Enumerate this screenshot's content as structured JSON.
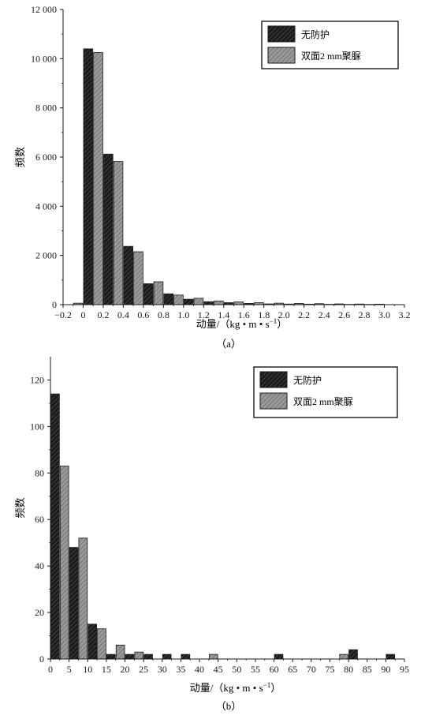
{
  "chart_data": [
    {
      "type": "bar",
      "panel_label": "（a）",
      "xlabel": "动量/（kg • m • s",
      "xlabel_sup": "−1",
      "xlabel_close": "）",
      "ylabel": "频数",
      "xlim": [
        -0.2,
        3.2
      ],
      "ylim": [
        0,
        12000
      ],
      "xticks": [
        -0.2,
        0,
        0.2,
        0.4,
        0.6,
        0.8,
        1.0,
        1.2,
        1.4,
        1.6,
        1.8,
        2.0,
        2.2,
        2.4,
        2.6,
        2.8,
        3.0,
        3.2
      ],
      "xtick_labels": [
        "−0.2",
        "0",
        "0.2",
        "0.4",
        "0.6",
        "0.8",
        "1.0",
        "1.2",
        "1.4",
        "1.6",
        "1.8",
        "2.0",
        "2.2",
        "2.4",
        "2.6",
        "2.8",
        "3.0",
        "3.2"
      ],
      "yticks": [
        0,
        2000,
        4000,
        6000,
        8000,
        10000,
        12000
      ],
      "ytick_labels": [
        "0",
        "2 000",
        "4 000",
        "6 000",
        "8 000",
        "10 000",
        "12 000"
      ],
      "bin_width": 0.2,
      "bin_starts": [
        -0.2,
        0,
        0.2,
        0.4,
        0.6,
        0.8,
        1.0,
        1.2,
        1.4,
        1.6,
        1.8,
        2.0,
        2.2,
        2.4,
        2.6,
        2.8
      ],
      "legend_position": "top-right",
      "series": [
        {
          "name": "无防护",
          "color": "#1a1a1a",
          "values": [
            0,
            10400,
            6120,
            2370,
            850,
            440,
            220,
            120,
            80,
            50,
            30,
            25,
            20,
            15,
            12,
            10
          ]
        },
        {
          "name": "双面2 mm聚脲",
          "color": "#8c8c8c",
          "values": [
            60,
            10250,
            5820,
            2150,
            930,
            390,
            260,
            150,
            110,
            80,
            60,
            50,
            40,
            30,
            25,
            20
          ]
        }
      ]
    },
    {
      "type": "bar",
      "panel_label": "（b）",
      "xlabel": "动量/（kg • m • s",
      "xlabel_sup": "−1",
      "xlabel_close": "）",
      "ylabel": "频数",
      "xlim": [
        0,
        95
      ],
      "ylim": [
        0,
        130
      ],
      "xticks": [
        0,
        5,
        10,
        15,
        20,
        25,
        30,
        35,
        40,
        45,
        50,
        55,
        60,
        65,
        70,
        75,
        80,
        85,
        90,
        95
      ],
      "xtick_labels": [
        "0",
        "5",
        "10",
        "15",
        "20",
        "25",
        "30",
        "35",
        "40",
        "45",
        "50",
        "55",
        "60",
        "65",
        "70",
        "75",
        "80",
        "85",
        "90",
        "95"
      ],
      "yticks": [
        0,
        20,
        40,
        60,
        80,
        100,
        120
      ],
      "ytick_labels": [
        "0",
        "20",
        "40",
        "60",
        "80",
        "100",
        "120"
      ],
      "bin_width": 5,
      "bin_starts": [
        0,
        5,
        10,
        15,
        20,
        25,
        30,
        35,
        40,
        45,
        50,
        55,
        60,
        65,
        70,
        75,
        80,
        85,
        90
      ],
      "legend_position": "top-right",
      "series": [
        {
          "name": "无防护",
          "color": "#1a1a1a",
          "values": [
            114,
            48,
            15,
            2,
            2,
            2,
            2,
            2,
            0,
            0,
            0,
            0,
            2,
            0,
            0,
            0,
            4,
            0,
            2
          ]
        },
        {
          "name": "双面2 mm聚脲",
          "color": "#8c8c8c",
          "values": [
            83,
            52,
            13,
            6,
            3,
            0,
            0,
            0,
            2,
            0,
            0,
            0,
            0,
            0,
            0,
            2,
            0,
            0,
            0
          ]
        }
      ]
    }
  ]
}
